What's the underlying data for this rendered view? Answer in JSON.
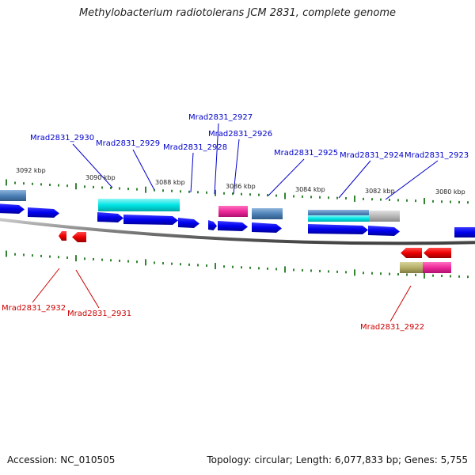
{
  "title": "Methylobacterium radiotolerans JCM 2831, complete genome",
  "footer": {
    "accession": "Accession: NC_010505",
    "summary": "Topology: circular; Length: 6,077,833 bp; Genes: 5,755"
  },
  "colors": {
    "label_forward": "#0000cc",
    "label_reverse": "#cc0000",
    "backbone": "#808080",
    "ticks": "#006600",
    "forward_arrow": "#0000ee",
    "reverse_arrow": "#ee0000",
    "cyan_feature": "#00e5e5",
    "magenta_feature": "#ee2a9a",
    "steel_feature": "#4f82b8",
    "grey_feature": "#b8b8b8",
    "olive_feature": "#b5b06a"
  },
  "kbp_labels": [
    "3092 kbp",
    "3090 kbp",
    "3088 kbp",
    "3086 kbp",
    "3084 kbp",
    "3082 kbp",
    "3080 kbp"
  ],
  "forward_genes": [
    "Mrad2831_2930",
    "Mrad2831_2929",
    "Mrad2831_2928",
    "Mrad2831_2927",
    "Mrad2831_2926",
    "Mrad2831_2925",
    "Mrad2831_2924",
    "Mrad2831_2923"
  ],
  "reverse_genes": [
    "Mrad2831_2932",
    "Mrad2831_2931",
    "Mrad2831_2922"
  ]
}
